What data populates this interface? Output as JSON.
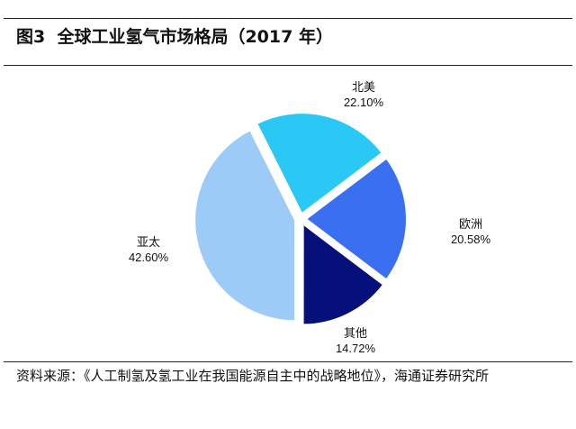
{
  "chart_data": {
    "type": "pie",
    "title": "图3  全球工业氢气市场格局（2017 年）",
    "slices": [
      {
        "label": "北美",
        "value": 22.1,
        "value_label": "22.10%",
        "color": "#29c8f5"
      },
      {
        "label": "欧洲",
        "value": 20.58,
        "value_label": "20.58%",
        "color": "#3a6ff2"
      },
      {
        "label": "其他",
        "value": 14.72,
        "value_label": "14.72%",
        "color": "#06107a"
      },
      {
        "label": "亚太",
        "value": 42.6,
        "value_label": "42.60%",
        "color": "#9ccbf8"
      }
    ],
    "exploded": true
  },
  "source": "资料来源：《人工制氢及氢工业在我国能源自主中的战略地位》，海通证券研究所"
}
